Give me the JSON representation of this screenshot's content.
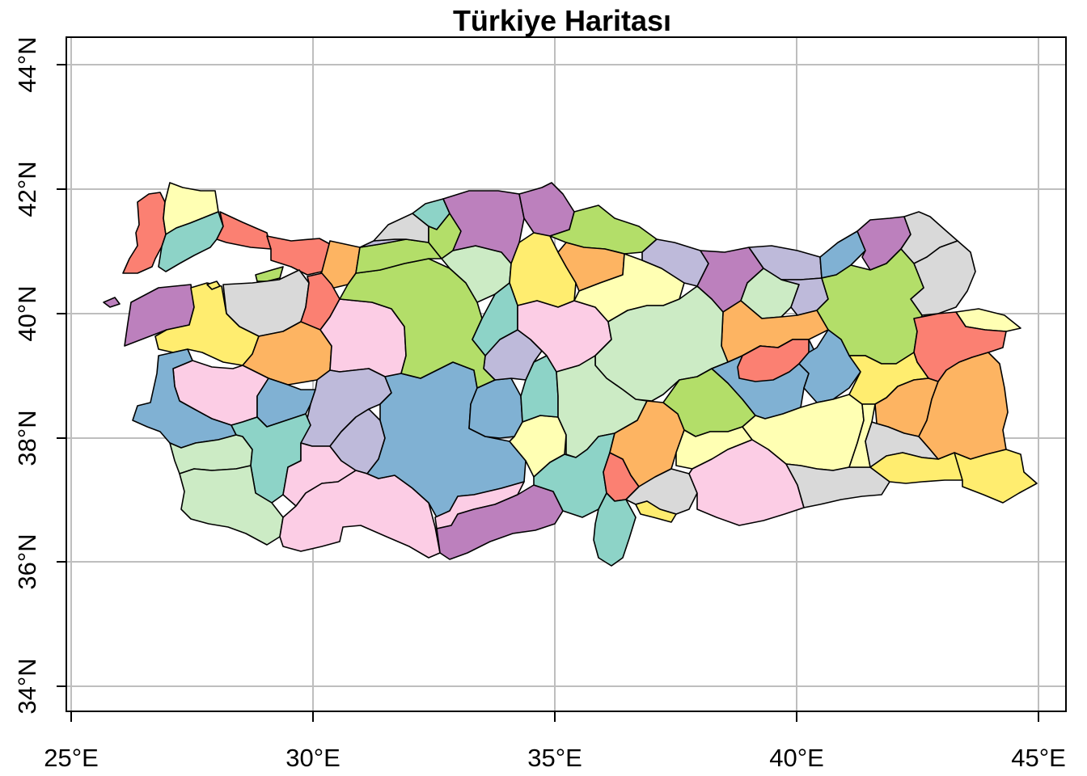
{
  "map": {
    "title": "Türkiye Haritası",
    "x_ticks": [
      "25°E",
      "30°E",
      "35°E",
      "40°E",
      "45°E"
    ],
    "y_ticks": [
      "34°N",
      "36°N",
      "38°N",
      "40°N",
      "42°N",
      "44°N"
    ],
    "grid": true,
    "grid_color": "#bebebe",
    "region_border_color": "#000000",
    "palette": [
      "#8dd3c7",
      "#ffffb3",
      "#bebada",
      "#fb8072",
      "#80b1d3",
      "#fdb462",
      "#b3de69",
      "#fccde5",
      "#d9d9d9",
      "#bc80bd",
      "#ccebc5",
      "#ffed6f"
    ]
  }
}
